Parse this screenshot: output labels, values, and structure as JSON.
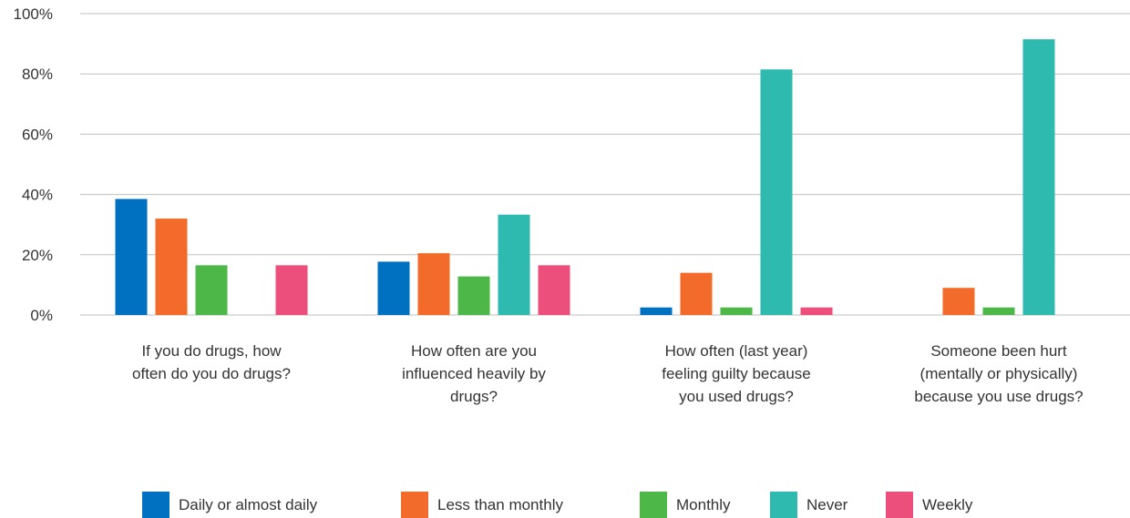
{
  "chart_data": {
    "type": "bar",
    "categories": [
      [
        "If you do drugs, how",
        "often do you do drugs?"
      ],
      [
        "How often are you",
        "influenced heavily by",
        "drugs?"
      ],
      [
        "How often (last year)",
        "feeling guilty because",
        "you used drugs?"
      ],
      [
        "Someone been hurt",
        "(mentally or physically)",
        "because you use drugs?"
      ]
    ],
    "series": [
      {
        "name": "Daily or almost daily",
        "color": "#0070C0",
        "values": [
          38.5,
          17.7,
          2.5,
          0
        ]
      },
      {
        "name": "Less than monthly",
        "color": "#F26B2A",
        "values": [
          32,
          20.5,
          14,
          9
        ]
      },
      {
        "name": "Monthly",
        "color": "#4DB848",
        "values": [
          16.5,
          12.8,
          2.5,
          2.5
        ]
      },
      {
        "name": "Never",
        "color": "#2EBAAE",
        "values": [
          0,
          33.3,
          81.5,
          91.5
        ]
      },
      {
        "name": "Weekly",
        "color": "#EC4F7C",
        "values": [
          16.5,
          16.5,
          2.5,
          0
        ]
      }
    ],
    "ylim": [
      0,
      100
    ],
    "yticks": [
      "0%",
      "20%",
      "40%",
      "60%",
      "80%",
      "100%"
    ],
    "ytick_values": [
      0,
      20,
      40,
      60,
      80,
      100
    ],
    "grid": true,
    "legend_position": "bottom"
  }
}
